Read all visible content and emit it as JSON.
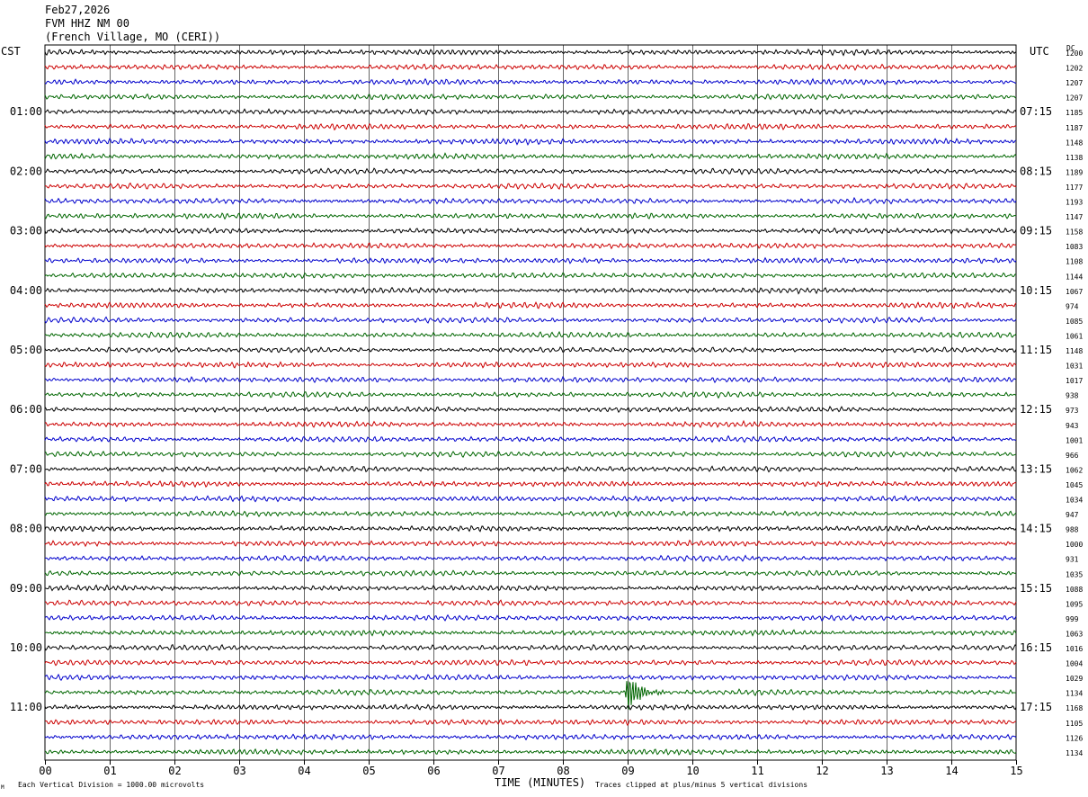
{
  "header": {
    "date": "Feb27,2026",
    "station": "FVM HHZ NM 00",
    "location": "(French Village, MO (CERI))"
  },
  "left_tz": "CST",
  "right_tz": "UTC",
  "dc_label": "DC",
  "footer": {
    "scale": "Each Vertical Division = 1000.00 microvolts",
    "clip": "Traces clipped at plus/minus 5 vertical divisions",
    "corner_mark": "M"
  },
  "colors": {
    "trace": [
      "#000000",
      "#cc0000",
      "#0000cc",
      "#006600"
    ],
    "grid": "#000000"
  },
  "chart_data": {
    "type": "line",
    "title": "",
    "xlabel": "TIME (MINUTES)",
    "ylabel": "",
    "xlim": [
      0,
      15
    ],
    "x_ticks": [
      "00",
      "01",
      "02",
      "03",
      "04",
      "05",
      "06",
      "07",
      "08",
      "09",
      "10",
      "11",
      "12",
      "13",
      "14",
      "15"
    ],
    "rows_per_hour": 4,
    "left_hour_labels": [
      "01:00",
      "02:00",
      "03:00",
      "04:00",
      "05:00",
      "06:00",
      "07:00",
      "08:00",
      "09:00",
      "10:00",
      "11:00"
    ],
    "right_hour_labels": [
      "07:15",
      "08:15",
      "09:15",
      "10:15",
      "11:15",
      "12:15",
      "13:15",
      "14:15",
      "15:15",
      "16:15",
      "17:15"
    ],
    "dc_values": [
      "1200",
      "1202",
      "1207",
      "1207",
      "1185",
      "1187",
      "1148",
      "1138",
      "1189",
      "1177",
      "1193",
      "1147",
      "1158",
      "1083",
      "1108",
      "1144",
      "1067",
      "974",
      "1085",
      "1061",
      "1148",
      "1031",
      "1017",
      "938",
      "973",
      "943",
      "1001",
      "966",
      "1062",
      "1045",
      "1034",
      "947",
      "988",
      "1000",
      "931",
      "1035",
      "1088",
      "1095",
      "999",
      "1063",
      "1016",
      "1004",
      "1029",
      "1134",
      "1168",
      "1105",
      "1126",
      "1134"
    ],
    "events": [
      {
        "row": 43,
        "minute": 9.0,
        "label": ""
      }
    ],
    "grid": true
  }
}
